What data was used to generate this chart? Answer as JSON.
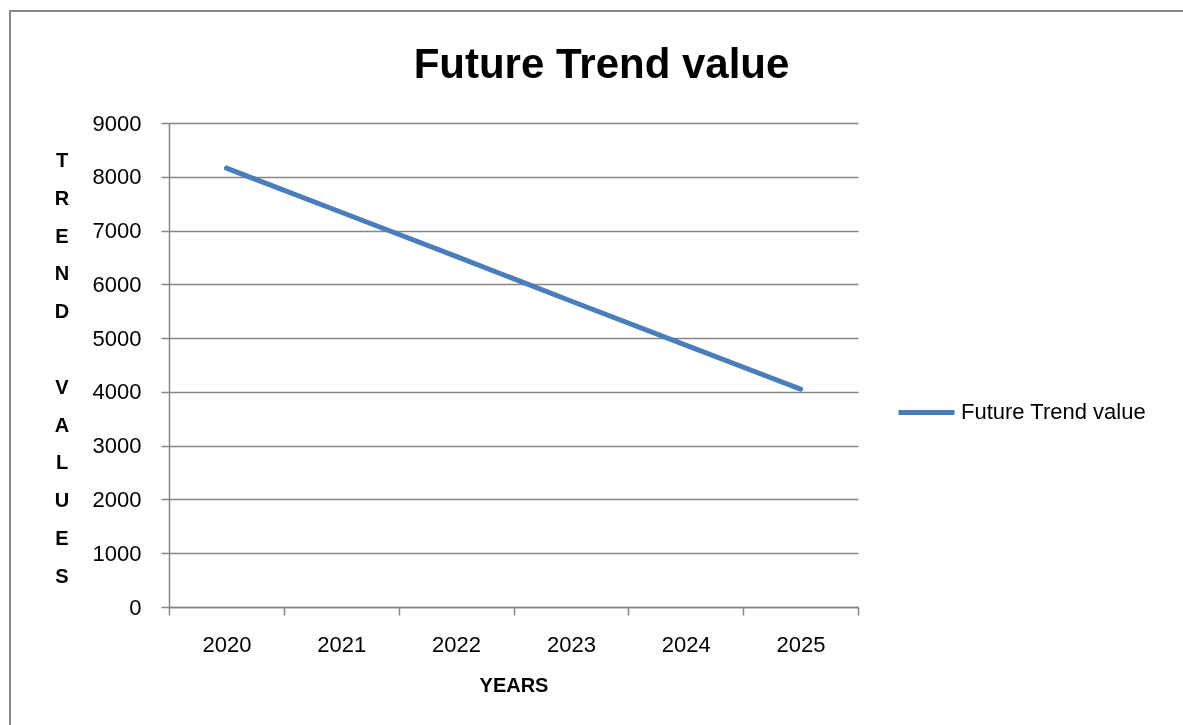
{
  "chart_data": {
    "type": "line",
    "title": "Future Trend value",
    "xlabel": "YEARS",
    "ylabel": "TREND VALUES",
    "categories": [
      "2020",
      "2021",
      "2022",
      "2023",
      "2024",
      "2025"
    ],
    "series": [
      {
        "name": "Future Trend value",
        "color": "#4a7ebb",
        "values": [
          8160,
          7340,
          6520,
          5690,
          4870,
          4050
        ]
      }
    ],
    "ylim": [
      0,
      9000
    ],
    "yticks": [
      0,
      1000,
      2000,
      3000,
      4000,
      5000,
      6000,
      7000,
      8000,
      9000
    ],
    "grid": "y",
    "legend": "right"
  }
}
